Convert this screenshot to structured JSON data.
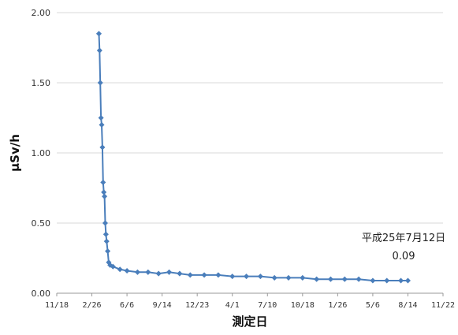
{
  "chart_data": {
    "type": "line",
    "xlabel": "測定日",
    "ylabel": "μSv/h",
    "ylim": [
      0,
      2.0
    ],
    "y_ticks": [
      "0.00",
      "0.50",
      "1.00",
      "1.50",
      "2.00"
    ],
    "x_ticks": [
      "11/18",
      "2/26",
      "6/6",
      "9/14",
      "12/23",
      "4/1",
      "7/10",
      "10/18",
      "1/26",
      "5/6",
      "8/14",
      "11/22"
    ],
    "grid": "horizontal",
    "legend": "none",
    "series_color": "#4a7ebb",
    "series": [
      {
        "x": [
          1.2,
          1.22,
          1.24,
          1.26,
          1.28,
          1.3,
          1.32,
          1.34,
          1.36,
          1.38,
          1.4,
          1.42,
          1.45,
          1.48,
          1.52,
          1.6,
          1.8,
          2.0,
          2.3,
          2.6,
          2.9,
          3.2,
          3.5,
          3.8,
          4.2,
          4.6,
          5.0,
          5.4,
          5.8,
          6.2,
          6.6,
          7.0,
          7.4,
          7.8,
          8.2,
          8.6,
          9.0,
          9.4,
          9.8,
          10.0
        ],
        "values": [
          1.85,
          1.73,
          1.5,
          1.25,
          1.2,
          1.04,
          0.79,
          0.72,
          0.69,
          0.5,
          0.42,
          0.37,
          0.3,
          0.22,
          0.2,
          0.19,
          0.17,
          0.16,
          0.15,
          0.15,
          0.14,
          0.15,
          0.14,
          0.13,
          0.13,
          0.13,
          0.12,
          0.12,
          0.12,
          0.11,
          0.11,
          0.11,
          0.1,
          0.1,
          0.1,
          0.1,
          0.09,
          0.09,
          0.09,
          0.09
        ]
      }
    ],
    "annotation": {
      "line1": "平成25年7月12日",
      "line2": "0.09"
    }
  }
}
